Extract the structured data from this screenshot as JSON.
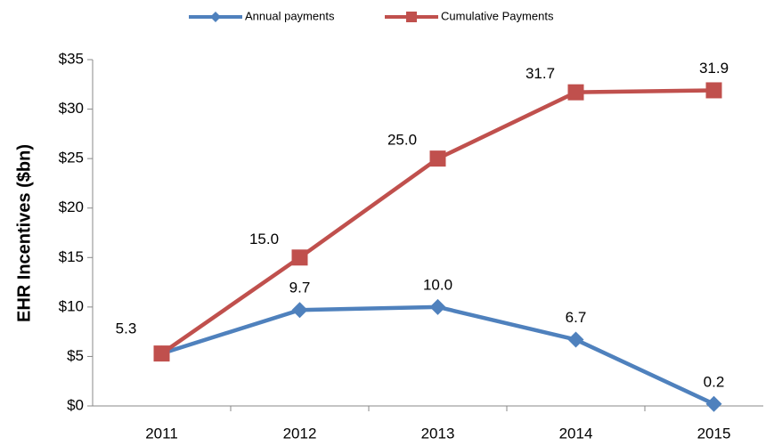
{
  "chart_data": {
    "type": "line",
    "y_label": "EHR Incentives ($bn)",
    "categories": [
      "2011",
      "2012",
      "2013",
      "2014",
      "2015"
    ],
    "series": [
      {
        "name": "Annual payments",
        "color": "#4f81bd",
        "marker": "diamond",
        "values": [
          5.3,
          9.7,
          10.0,
          6.7,
          0.2
        ],
        "value_labels": [
          null,
          "9.7",
          "10.0",
          "6.7",
          "0.2"
        ]
      },
      {
        "name": "Cumulative Payments",
        "color": "#c0504d",
        "marker": "square",
        "values": [
          5.3,
          15.0,
          25.0,
          31.7,
          31.9
        ],
        "value_labels": [
          "5.3",
          "15.0",
          "25.0",
          "31.7",
          "31.9"
        ]
      }
    ],
    "ylim": [
      0,
      35
    ],
    "yticks": [
      {
        "value": 0,
        "label": "$0"
      },
      {
        "value": 5,
        "label": "$5"
      },
      {
        "value": 10,
        "label": "$10"
      },
      {
        "value": 15,
        "label": "$15"
      },
      {
        "value": 20,
        "label": "$20"
      },
      {
        "value": 25,
        "label": "$25"
      },
      {
        "value": 30,
        "label": "$30"
      },
      {
        "value": 35,
        "label": "$35"
      }
    ],
    "legend": "top",
    "grid": false
  }
}
